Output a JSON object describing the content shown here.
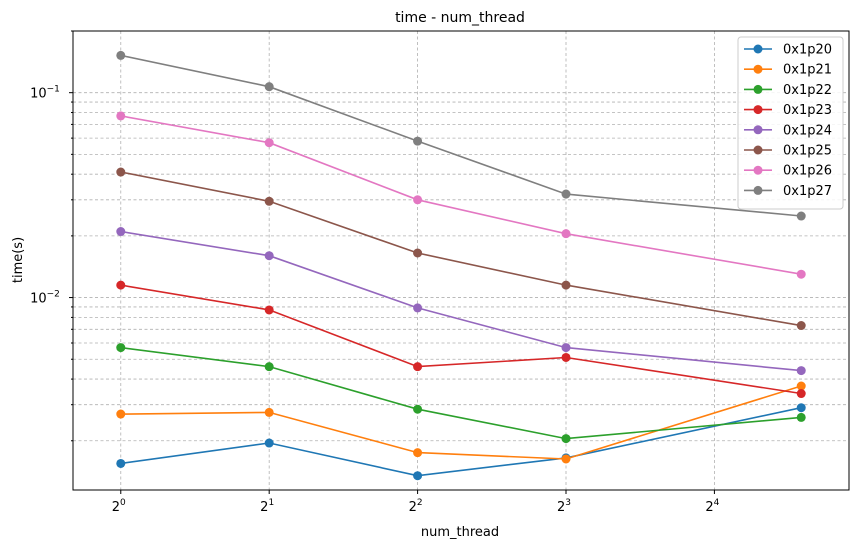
{
  "chart_data": {
    "type": "line",
    "title": "time - num_thread",
    "xlabel": "num_thread",
    "ylabel": "time(s)",
    "x_scale": "log2",
    "y_scale": "log10",
    "x": [
      1,
      2,
      4,
      8,
      24
    ],
    "xlim": [
      0.8,
      30
    ],
    "ylim": [
      0.00115,
      0.2
    ],
    "x_ticks": [
      {
        "value": 1,
        "base": "2",
        "exp": "0"
      },
      {
        "value": 2,
        "base": "2",
        "exp": "1"
      },
      {
        "value": 4,
        "base": "2",
        "exp": "2"
      },
      {
        "value": 8,
        "base": "2",
        "exp": "3"
      },
      {
        "value": 16,
        "base": "2",
        "exp": "4"
      }
    ],
    "y_ticks": [
      {
        "value": 0.01,
        "base": "10",
        "exp": "−2"
      },
      {
        "value": 0.1,
        "base": "10",
        "exp": "−1"
      }
    ],
    "grid": true,
    "legend_position": "top-right",
    "series": [
      {
        "name": "0x1p20",
        "color": "#1f77b4",
        "values": [
          0.00155,
          0.00195,
          0.00135,
          0.00165,
          0.0029
        ]
      },
      {
        "name": "0x1p21",
        "color": "#ff7f0e",
        "values": [
          0.0027,
          0.00275,
          0.00175,
          0.00163,
          0.0037
        ]
      },
      {
        "name": "0x1p22",
        "color": "#2ca02c",
        "values": [
          0.0057,
          0.0046,
          0.00285,
          0.00205,
          0.0026
        ]
      },
      {
        "name": "0x1p23",
        "color": "#d62728",
        "values": [
          0.0115,
          0.0087,
          0.0046,
          0.0051,
          0.0034
        ]
      },
      {
        "name": "0x1p24",
        "color": "#9467bd",
        "values": [
          0.021,
          0.016,
          0.0089,
          0.0057,
          0.0044
        ]
      },
      {
        "name": "0x1p25",
        "color": "#8c564b",
        "values": [
          0.041,
          0.0295,
          0.0165,
          0.0115,
          0.0073
        ]
      },
      {
        "name": "0x1p26",
        "color": "#e377c2",
        "values": [
          0.077,
          0.057,
          0.03,
          0.0205,
          0.013
        ]
      },
      {
        "name": "0x1p27",
        "color": "#7f7f7f",
        "values": [
          0.152,
          0.107,
          0.058,
          0.032,
          0.025
        ]
      }
    ]
  }
}
